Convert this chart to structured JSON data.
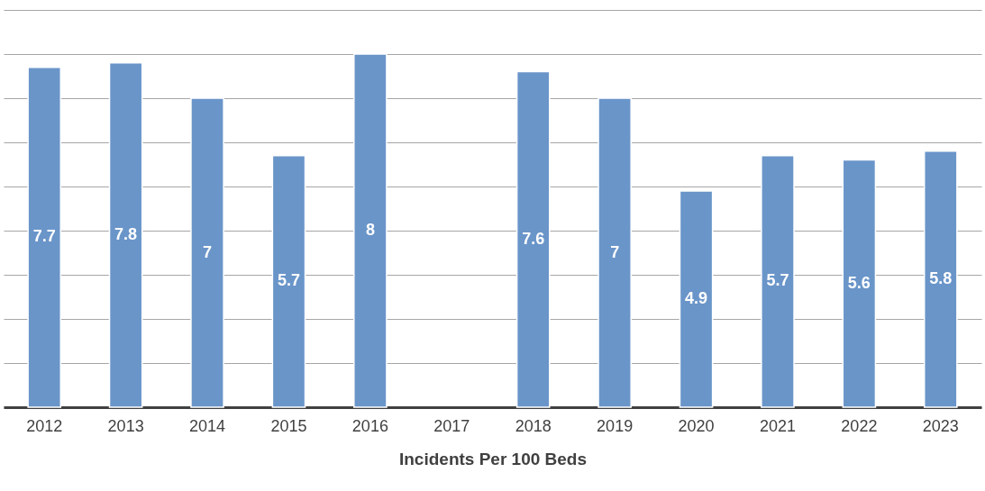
{
  "chart_data": {
    "type": "bar",
    "xlabel": "Incidents Per 100 Beds",
    "categories": [
      "2012",
      "2013",
      "2014",
      "2015",
      "2016",
      "2017",
      "2018",
      "2019",
      "2020",
      "2021",
      "2022",
      "2023"
    ],
    "values": [
      7.7,
      7.8,
      7,
      5.7,
      8,
      null,
      7.6,
      7,
      4.9,
      5.7,
      5.6,
      5.8
    ],
    "color": "#6a95c9",
    "data_labels": true,
    "grid": "y",
    "tick_labels": "x",
    "ylim": [
      0,
      9
    ],
    "yticks": [
      {
        "value": 0,
        "label": null
      },
      {
        "value": 1,
        "label": null
      },
      {
        "value": 2,
        "label": null
      },
      {
        "value": 3,
        "label": null
      },
      {
        "value": 4,
        "label": null
      },
      {
        "value": 5,
        "label": null
      },
      {
        "value": 6,
        "label": null
      },
      {
        "value": 7,
        "label": null
      },
      {
        "value": 8,
        "label": null
      },
      {
        "value": 9,
        "label": null
      }
    ]
  }
}
